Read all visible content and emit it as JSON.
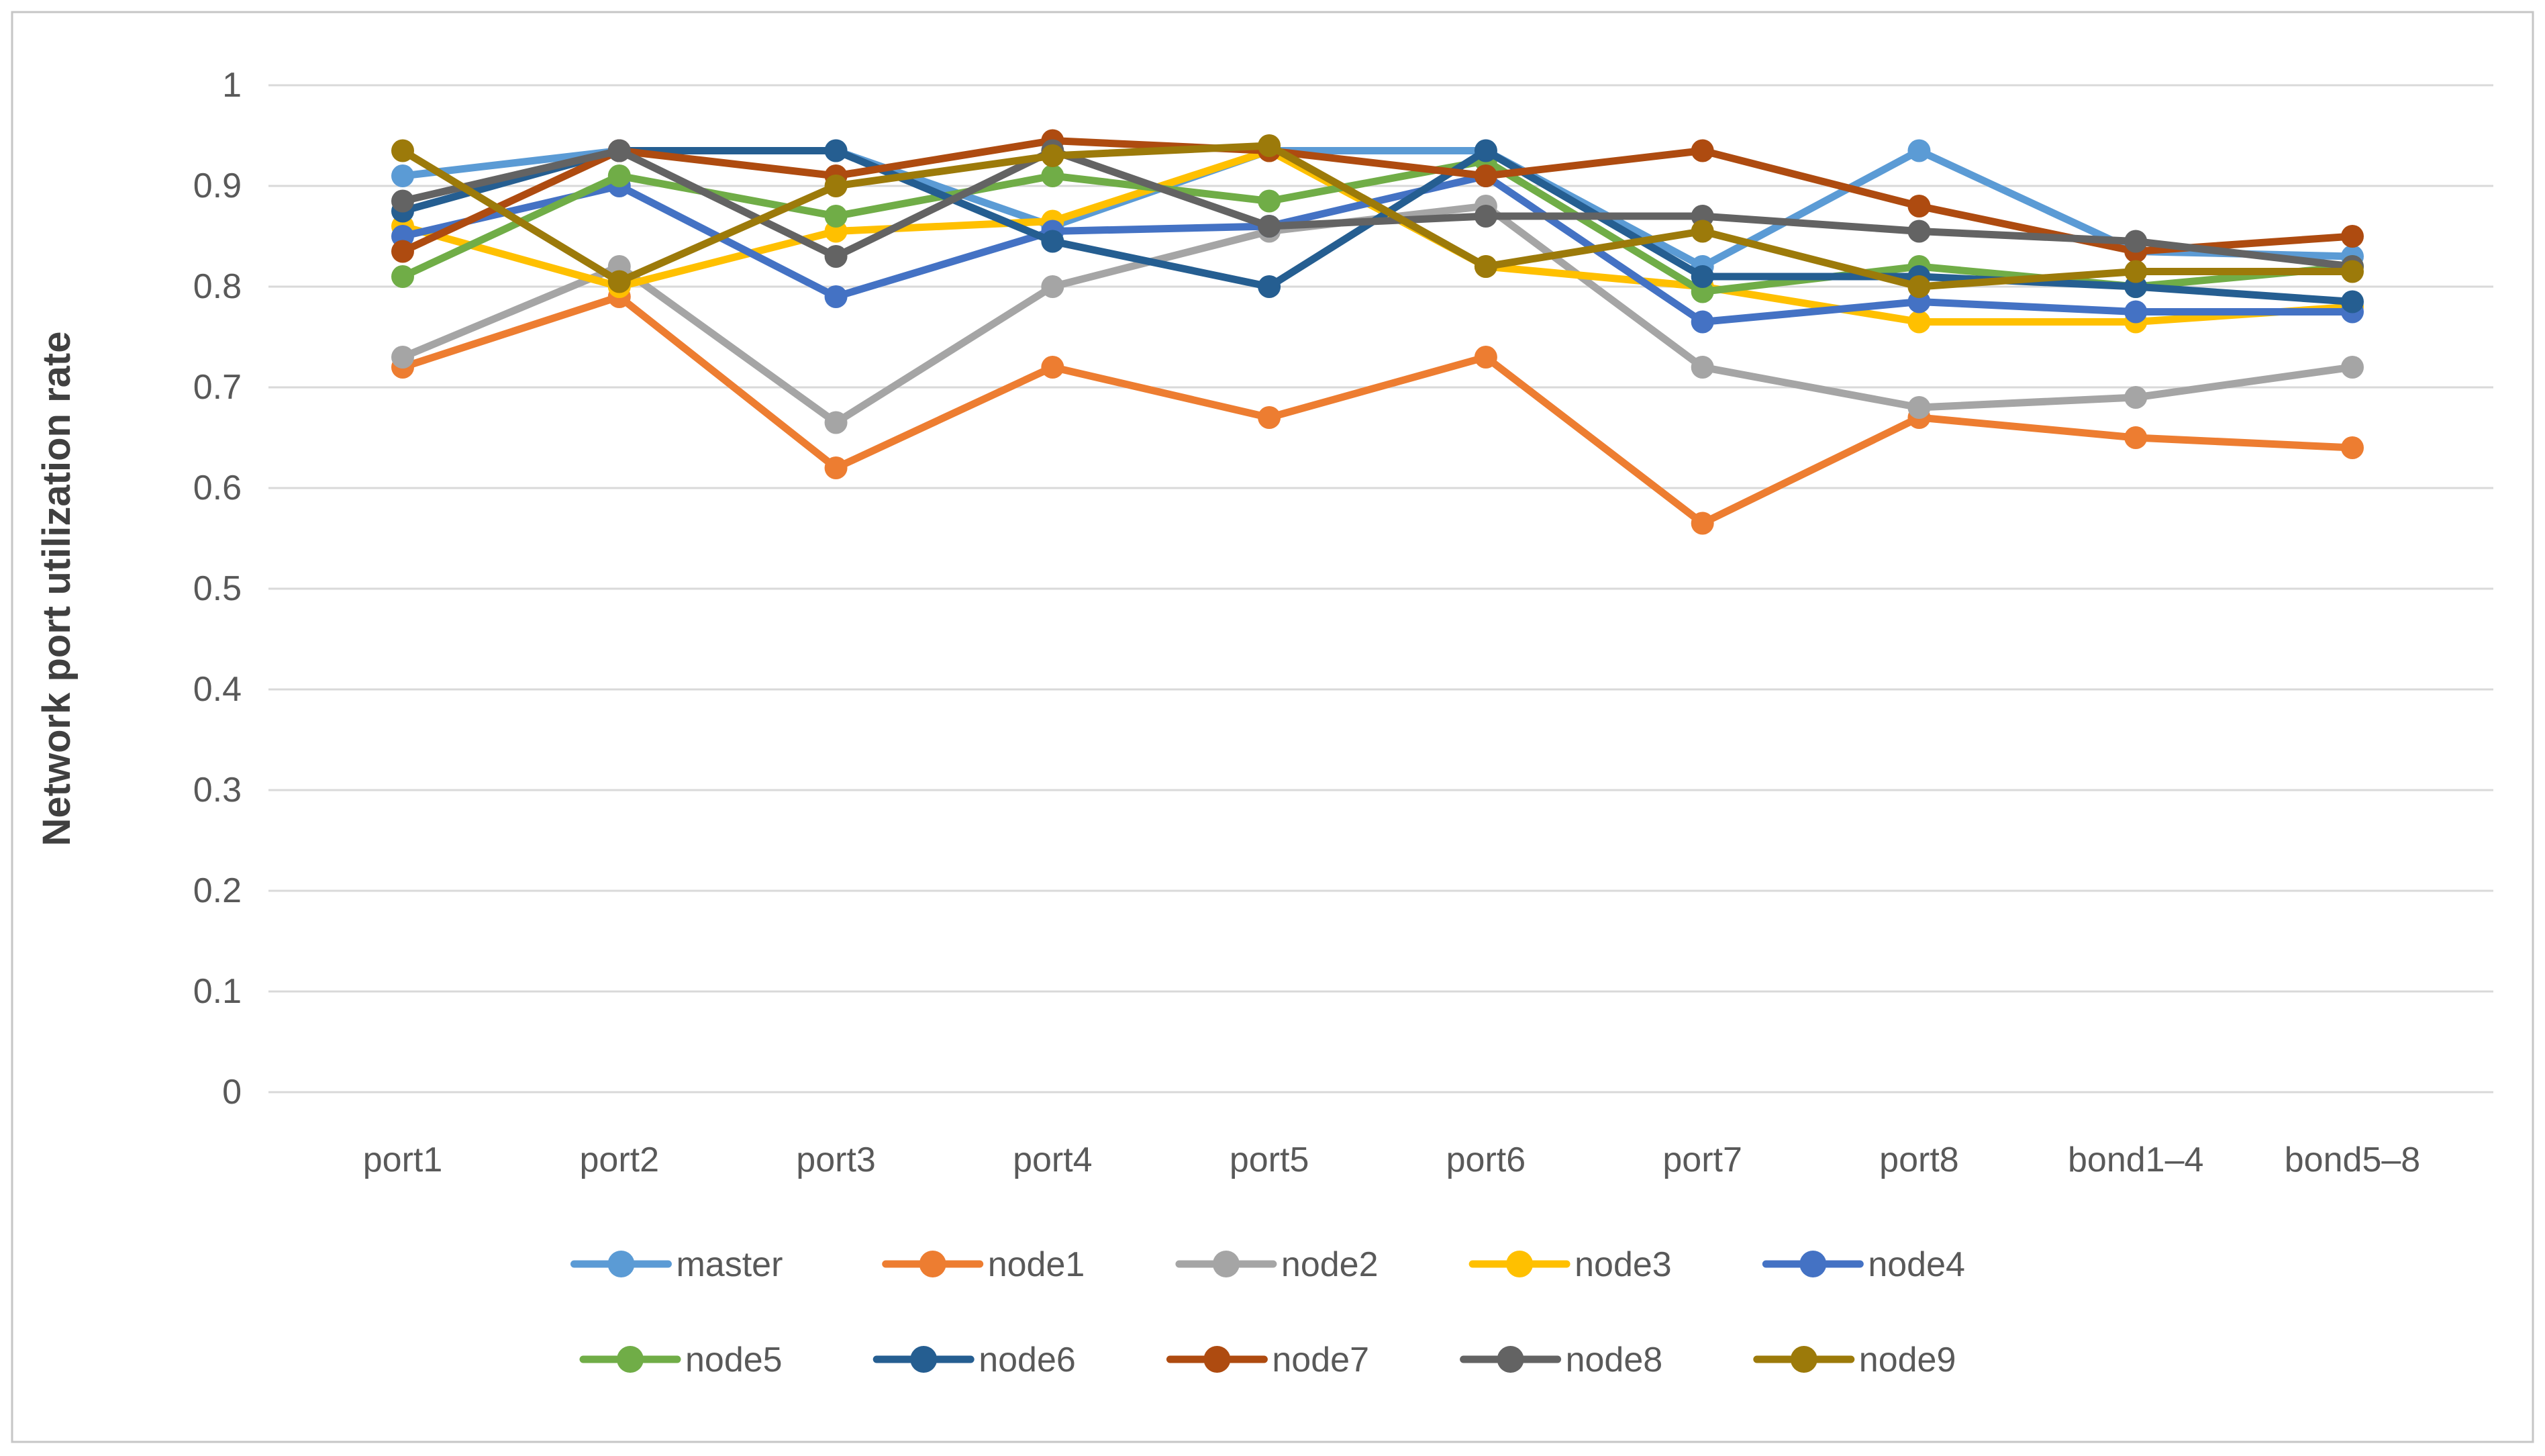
{
  "figure": {
    "background_color": "#ffffff",
    "border_color": "#c6c6c6"
  },
  "axis": {
    "tick_color": "#595959",
    "gridline_color": "#d9d9d9",
    "label_color": "#595959",
    "title_color": "#404040"
  },
  "chart_data": {
    "type": "line",
    "title": "",
    "xlabel": "",
    "ylabel": "Network port utilization rate",
    "ylim": [
      0,
      1
    ],
    "grid": true,
    "legend_position": "bottom",
    "ytick_labels": [
      "0",
      "0.1",
      "0.2",
      "0.3",
      "0.4",
      "0.5",
      "0.6",
      "0.7",
      "0.8",
      "0.9",
      "1"
    ],
    "categories": [
      "port1",
      "port2",
      "port3",
      "port4",
      "port5",
      "port6",
      "port7",
      "port8",
      "bond1–4",
      "bond5–8"
    ],
    "series": [
      {
        "name": "master",
        "color": "#5B9BD5",
        "values": [
          0.91,
          0.935,
          0.935,
          0.86,
          0.935,
          0.935,
          0.82,
          0.935,
          0.835,
          0.83
        ]
      },
      {
        "name": "node1",
        "color": "#ED7D31",
        "values": [
          0.72,
          0.79,
          0.62,
          0.72,
          0.67,
          0.73,
          0.565,
          0.67,
          0.65,
          0.64
        ]
      },
      {
        "name": "node2",
        "color": "#A5A5A5",
        "values": [
          0.73,
          0.82,
          0.665,
          0.8,
          0.855,
          0.88,
          0.72,
          0.68,
          0.69,
          0.72
        ]
      },
      {
        "name": "node3",
        "color": "#FFC000",
        "values": [
          0.86,
          0.8,
          0.855,
          0.865,
          0.935,
          0.82,
          0.8,
          0.765,
          0.765,
          0.78
        ]
      },
      {
        "name": "node4",
        "color": "#4472C4",
        "values": [
          0.85,
          0.9,
          0.79,
          0.855,
          0.86,
          0.91,
          0.765,
          0.785,
          0.775,
          0.775
        ]
      },
      {
        "name": "node5",
        "color": "#70AD47",
        "values": [
          0.81,
          0.91,
          0.87,
          0.91,
          0.885,
          0.925,
          0.795,
          0.82,
          0.8,
          0.82
        ]
      },
      {
        "name": "node6",
        "color": "#255E91",
        "values": [
          0.875,
          0.935,
          0.935,
          0.845,
          0.8,
          0.935,
          0.81,
          0.81,
          0.8,
          0.785
        ]
      },
      {
        "name": "node7",
        "color": "#AE4B10",
        "values": [
          0.835,
          0.935,
          0.91,
          0.945,
          0.935,
          0.91,
          0.935,
          0.88,
          0.835,
          0.85
        ]
      },
      {
        "name": "node8",
        "color": "#636363",
        "values": [
          0.885,
          0.935,
          0.83,
          0.935,
          0.86,
          0.87,
          0.87,
          0.855,
          0.845,
          0.82
        ]
      },
      {
        "name": "node9",
        "color": "#9C7A0A",
        "values": [
          0.935,
          0.805,
          0.9,
          0.93,
          0.94,
          0.82,
          0.855,
          0.8,
          0.815,
          0.815
        ]
      }
    ],
    "legend_rows": [
      [
        "master",
        "node1",
        "node2",
        "node3",
        "node4"
      ],
      [
        "node5",
        "node6",
        "node7",
        "node8",
        "node9"
      ]
    ]
  }
}
